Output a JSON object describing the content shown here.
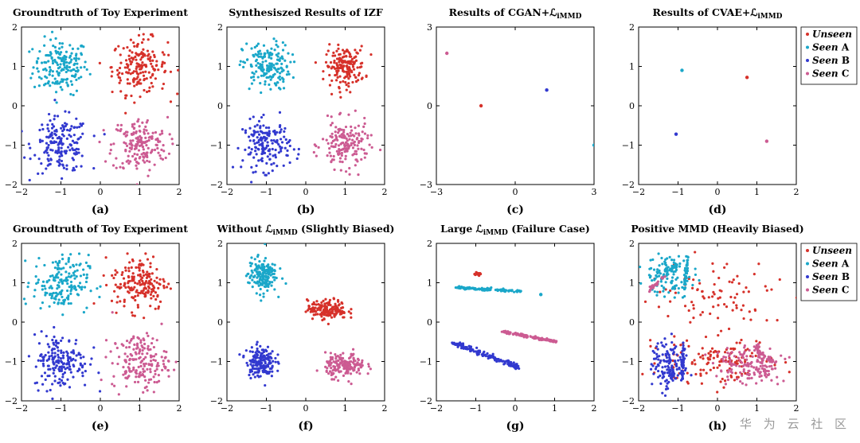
{
  "colors": {
    "unseen": "#d6312a",
    "seen_a": "#1aa7c9",
    "seen_b": "#3239cf",
    "seen_c": "#cc5b92"
  },
  "legend": [
    {
      "key": "unseen",
      "prefix": "Unseen",
      "suffix": ""
    },
    {
      "key": "seen_a",
      "prefix": "Seen",
      "suffix": " A"
    },
    {
      "key": "seen_b",
      "prefix": "Seen",
      "suffix": " B"
    },
    {
      "key": "seen_c",
      "prefix": "Seen",
      "suffix": " C"
    }
  ],
  "watermark": "华 为 云 社 区",
  "chart_data": [
    {
      "id": "a",
      "type": "scatter",
      "title": "Groundtruth of Toy Experiment",
      "caption": "(a)",
      "xlim": [
        -2,
        2
      ],
      "ylim": [
        -2,
        2
      ],
      "xticks": [
        -2,
        -1,
        0,
        1,
        2
      ],
      "yticks": [
        -2,
        -1,
        0,
        1,
        2
      ],
      "series": [
        {
          "key": "seen_a",
          "center": [
            -1,
            1
          ],
          "spread": [
            0.35,
            0.35
          ],
          "n": 180
        },
        {
          "key": "unseen",
          "center": [
            1,
            1
          ],
          "spread": [
            0.35,
            0.35
          ],
          "n": 180
        },
        {
          "key": "seen_b",
          "center": [
            -1,
            -1
          ],
          "spread": [
            0.35,
            0.35
          ],
          "n": 180
        },
        {
          "key": "seen_c",
          "center": [
            1,
            -1
          ],
          "spread": [
            0.35,
            0.35
          ],
          "n": 180
        }
      ]
    },
    {
      "id": "b",
      "type": "scatter",
      "title": "Synthesiszed Results of IZF",
      "caption": "(b)",
      "xlim": [
        -2,
        2
      ],
      "ylim": [
        -2,
        2
      ],
      "xticks": [
        -2,
        -1,
        0,
        1,
        2
      ],
      "yticks": [
        -2,
        -1,
        0,
        1,
        2
      ],
      "series": [
        {
          "key": "seen_a",
          "center": [
            -1,
            1
          ],
          "spread": [
            0.3,
            0.3
          ],
          "n": 170
        },
        {
          "key": "unseen",
          "center": [
            1,
            1
          ],
          "spread": [
            0.25,
            0.25
          ],
          "n": 170
        },
        {
          "key": "seen_b",
          "center": [
            -1,
            -1
          ],
          "spread": [
            0.3,
            0.32
          ],
          "n": 170
        },
        {
          "key": "seen_c",
          "center": [
            1,
            -1
          ],
          "spread": [
            0.3,
            0.3
          ],
          "n": 170
        }
      ]
    },
    {
      "id": "c",
      "type": "scatter",
      "title": "Results of CGAN+ℒ",
      "title_sub": "iMMD",
      "title_after": "",
      "caption": "(c)",
      "xlim": [
        -3,
        3
      ],
      "ylim": [
        -3,
        3
      ],
      "xticks": [
        -3,
        0,
        3
      ],
      "yticks": [
        -3,
        0,
        3
      ],
      "points": [
        {
          "key": "seen_c",
          "x": -2.6,
          "y": 2.0
        },
        {
          "key": "unseen",
          "x": -1.3,
          "y": 0.0
        },
        {
          "key": "seen_b",
          "x": 1.2,
          "y": 0.6
        },
        {
          "key": "seen_a",
          "x": 3.0,
          "y": -1.5
        }
      ]
    },
    {
      "id": "d",
      "type": "scatter",
      "title": "Results of CVAE+ℒ",
      "title_sub": "iMMD",
      "title_after": "",
      "caption": "(d)",
      "xlim": [
        -2,
        2
      ],
      "ylim": [
        -2,
        2
      ],
      "xticks": [
        -2,
        -1,
        0,
        1,
        2
      ],
      "yticks": [
        -2,
        -1,
        0,
        1,
        2
      ],
      "legend": true,
      "points": [
        {
          "key": "seen_a",
          "x": -0.9,
          "y": 0.9
        },
        {
          "key": "unseen",
          "x": 0.75,
          "y": 0.72
        },
        {
          "key": "seen_b",
          "x": -1.05,
          "y": -0.72
        },
        {
          "key": "seen_c",
          "x": 1.25,
          "y": -0.9
        }
      ]
    },
    {
      "id": "e",
      "type": "scatter",
      "title": "Groundtruth of Toy Experiment",
      "caption": "(e)",
      "xlim": [
        -2,
        2
      ],
      "ylim": [
        -2,
        2
      ],
      "xticks": [
        -2,
        -1,
        0,
        1,
        2
      ],
      "yticks": [
        -2,
        -1,
        0,
        1,
        2
      ],
      "series": [
        {
          "key": "seen_a",
          "center": [
            -1,
            1
          ],
          "spread": [
            0.35,
            0.35
          ],
          "n": 180
        },
        {
          "key": "unseen",
          "center": [
            1,
            1
          ],
          "spread": [
            0.35,
            0.35
          ],
          "n": 180
        },
        {
          "key": "seen_b",
          "center": [
            -1,
            -1
          ],
          "spread": [
            0.35,
            0.35
          ],
          "n": 180
        },
        {
          "key": "seen_c",
          "center": [
            1,
            -1
          ],
          "spread": [
            0.35,
            0.35
          ],
          "n": 180
        }
      ]
    },
    {
      "id": "f",
      "type": "scatter",
      "title": "Without ℒ",
      "title_sub": "iMMD",
      "title_after": " (Slightly Biased)",
      "caption": "(f)",
      "xlim": [
        -2,
        2
      ],
      "ylim": [
        -2,
        2
      ],
      "xticks": [
        -2,
        -1,
        0,
        1,
        2
      ],
      "yticks": [
        -2,
        -1,
        0,
        1,
        2
      ],
      "series": [
        {
          "key": "seen_a",
          "center": [
            -1.1,
            1.2
          ],
          "spread": [
            0.18,
            0.22
          ],
          "n": 170
        },
        {
          "key": "unseen",
          "center": [
            0.55,
            0.32
          ],
          "spread": [
            0.25,
            0.12
          ],
          "n": 170
        },
        {
          "key": "seen_b",
          "center": [
            -1.15,
            -1.0
          ],
          "spread": [
            0.18,
            0.2
          ],
          "n": 170
        },
        {
          "key": "seen_c",
          "center": [
            1.0,
            -1.1
          ],
          "spread": [
            0.25,
            0.15
          ],
          "n": 170
        }
      ]
    },
    {
      "id": "g",
      "type": "scatter",
      "title": "Large ℒ",
      "title_sub": "iMMD",
      "title_after": " (Failure Case)",
      "caption": "(g)",
      "xlim": [
        -2,
        2
      ],
      "ylim": [
        -2,
        2
      ],
      "xticks": [
        -2,
        -1,
        0,
        1,
        2
      ],
      "yticks": [
        -2,
        -1,
        0,
        1,
        2
      ],
      "lines": [
        {
          "key": "unseen",
          "from": [
            -1.0,
            1.22
          ],
          "to": [
            -0.9,
            1.22
          ],
          "n": 25,
          "jitter": 0.02
        },
        {
          "key": "seen_a",
          "from": [
            -1.5,
            0.88
          ],
          "to": [
            0.2,
            0.78
          ],
          "n": 120,
          "jitter": 0.015
        },
        {
          "key": "seen_b",
          "from": [
            -1.6,
            -0.52
          ],
          "to": [
            0.1,
            -1.15
          ],
          "n": 160,
          "jitter": 0.03
        },
        {
          "key": "seen_c",
          "from": [
            -0.3,
            -0.25
          ],
          "to": [
            1.05,
            -0.5
          ],
          "n": 120,
          "jitter": 0.015
        }
      ],
      "points": [
        {
          "key": "seen_a",
          "x": 0.65,
          "y": 0.7
        }
      ]
    },
    {
      "id": "h",
      "type": "scatter",
      "title": "Positive MMD (Heavily Biased)",
      "caption": "(h)",
      "xlim": [
        -2,
        2
      ],
      "ylim": [
        -2,
        2
      ],
      "xticks": [
        -2,
        -1,
        0,
        1,
        2
      ],
      "yticks": [
        -2,
        -1,
        0,
        1,
        2
      ],
      "legend": true,
      "series": [
        {
          "key": "unseen",
          "center": [
            0.0,
            0.6
          ],
          "spread": [
            0.9,
            0.45
          ],
          "n": 90
        },
        {
          "key": "unseen",
          "center": [
            0.0,
            -1.05
          ],
          "spread": [
            0.75,
            0.3
          ],
          "n": 130
        },
        {
          "key": "seen_a",
          "center": [
            -1.25,
            1.2
          ],
          "spread": [
            0.28,
            0.25
          ],
          "n": 110
        },
        {
          "key": "seen_b",
          "center": [
            -1.25,
            -1.1
          ],
          "spread": [
            0.2,
            0.3
          ],
          "n": 130
        },
        {
          "key": "seen_c",
          "center": [
            0.75,
            -1.1
          ],
          "spread": [
            0.4,
            0.25
          ],
          "n": 140
        }
      ],
      "lines": [
        {
          "key": "seen_a",
          "from": [
            -0.75,
            1.7
          ],
          "to": [
            -0.85,
            0.65
          ],
          "n": 40,
          "jitter": 0.02
        },
        {
          "key": "seen_a",
          "from": [
            -1.35,
            1.3
          ],
          "to": [
            -0.9,
            1.5
          ],
          "n": 25,
          "jitter": 0.03
        },
        {
          "key": "seen_c",
          "from": [
            -1.75,
            0.8
          ],
          "to": [
            -1.3,
            1.2
          ],
          "n": 25,
          "jitter": 0.02
        },
        {
          "key": "seen_b",
          "from": [
            -0.85,
            -0.55
          ],
          "to": [
            -0.9,
            -1.5
          ],
          "n": 40,
          "jitter": 0.02
        },
        {
          "key": "seen_c",
          "from": [
            1.0,
            -0.55
          ],
          "to": [
            1.25,
            -1.45
          ],
          "n": 35,
          "jitter": 0.03
        },
        {
          "key": "seen_c",
          "from": [
            1.0,
            -0.7
          ],
          "to": [
            1.45,
            -1.05
          ],
          "n": 25,
          "jitter": 0.02
        }
      ]
    }
  ]
}
